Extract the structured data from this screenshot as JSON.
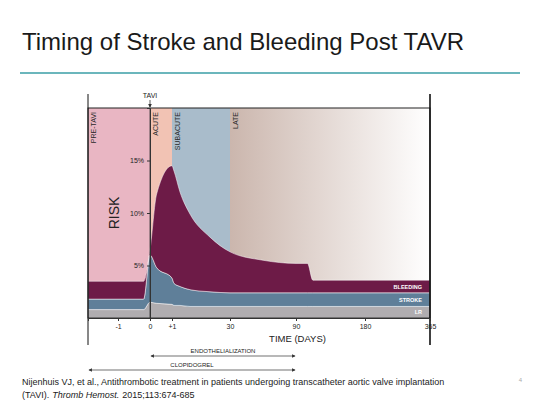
{
  "slide_title": "Timing of Stroke and Bleeding Post TAVR",
  "chart_data": {
    "type": "area",
    "stacked": true,
    "grid": false,
    "xlabel": "TIME (DAYS)",
    "ylabel": "RISK",
    "x": [
      -2,
      -1,
      -0.2,
      0,
      0.3,
      1,
      2,
      5,
      10,
      20,
      30,
      60,
      90,
      105,
      112,
      180,
      365
    ],
    "xlim": [
      -2,
      365
    ],
    "xticks": [
      -1,
      0,
      {
        "value": 1,
        "label": "+1"
      },
      30,
      90,
      180,
      365
    ],
    "ylim": [
      0,
      20
    ],
    "yticks": [
      {
        "value": 5,
        "label": "5%"
      },
      {
        "value": 10,
        "label": "10%"
      },
      {
        "value": 15,
        "label": "15%"
      }
    ],
    "series": [
      {
        "name": "LR",
        "color": "#b0adb0",
        "values": [
          0.8,
          0.8,
          0.8,
          1.5,
          1.4,
          1.3,
          1.2,
          1.2,
          1.1,
          1.1,
          1.1,
          1.1,
          1.1,
          1.1,
          1.1,
          1.1,
          1.1
        ]
      },
      {
        "name": "STROKE",
        "color": "#5f7f99",
        "values": [
          1.0,
          1.0,
          1.0,
          4.5,
          3.4,
          2.5,
          2.1,
          1.8,
          1.6,
          1.4,
          1.3,
          1.3,
          1.3,
          1.3,
          1.3,
          1.3,
          1.3
        ]
      },
      {
        "name": "BLEEDING",
        "color": "#6d1b47",
        "values": [
          1.7,
          1.7,
          1.7,
          0.5,
          7.0,
          10.7,
          10.7,
          9.0,
          7.2,
          5.2,
          3.9,
          3.1,
          2.8,
          2.8,
          1.2,
          1.2,
          1.2
        ]
      }
    ],
    "phases": [
      {
        "label": "PRE-TAVI",
        "start": -2,
        "end": 0
      },
      {
        "label": "ACUTE",
        "start": 0,
        "end": 1
      },
      {
        "label": "SUBACUTE",
        "start": 1,
        "end": 30
      },
      {
        "label": "LATE",
        "start": 30,
        "end": 365
      }
    ],
    "event": {
      "label": "TAVI",
      "x": 0
    },
    "periods": [
      {
        "label": "ENDOTHELIALIZATION",
        "start": 0,
        "end": 90
      },
      {
        "label": "CLOPIDOGREL",
        "start": -2,
        "end": 90
      }
    ]
  },
  "source": {
    "line1": "Nijenhuis VJ, et al., Antithrombotic treatment in patients undergoing transcatheter aortic valve implantation",
    "line2_start": "(TAVI).",
    "journal": "Thromb Hemost.",
    "citation": "2015;113:674-685"
  },
  "page_number": "4"
}
